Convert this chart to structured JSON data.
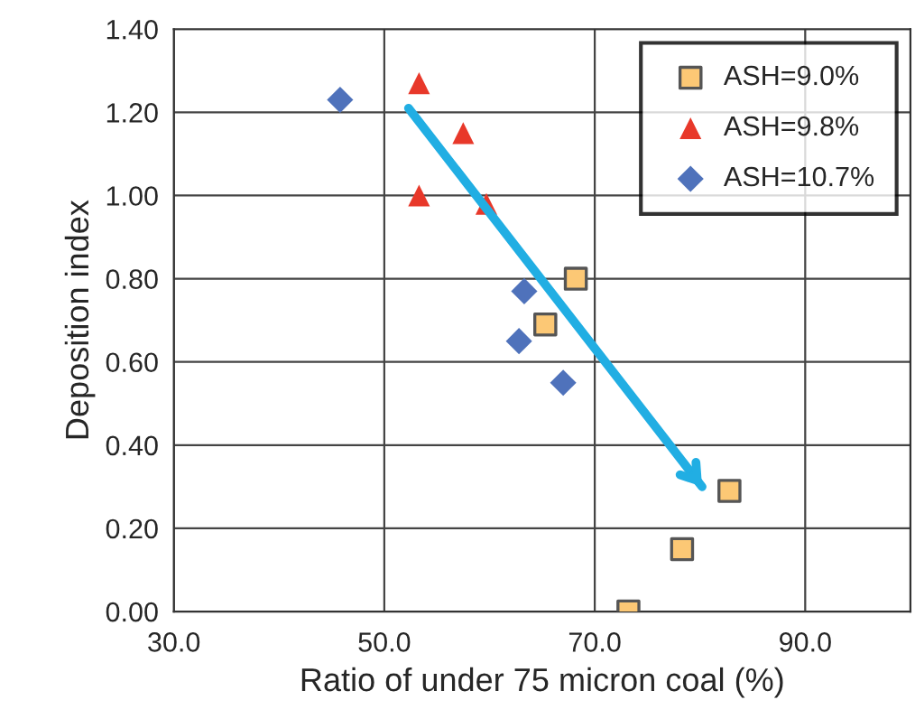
{
  "chart_data": {
    "type": "scatter",
    "xlabel": "Ratio of under 75 micron coal (%)",
    "ylabel": "Deposition index",
    "series": [
      {
        "name": "ASH=9.0%",
        "color": "#fcc875",
        "marker": "square",
        "x": [
          68.2,
          65.3,
          82.8,
          78.3,
          73.2
        ],
        "values": [
          0.8,
          0.69,
          0.29,
          0.15,
          0.0
        ]
      },
      {
        "name": "ASH=9.8%",
        "color": "#e8382a",
        "marker": "triangle",
        "x": [
          53.3,
          57.5,
          53.3,
          59.7
        ],
        "values": [
          1.27,
          1.15,
          1.0,
          0.98
        ]
      },
      {
        "name": "ASH=10.7%",
        "color": "#4f72bb",
        "marker": "diamond",
        "x": [
          45.8,
          63.3,
          62.8,
          67.0
        ],
        "values": [
          1.23,
          0.77,
          0.65,
          0.55
        ]
      },
      {
        "type": "line",
        "color": "#21aee3",
        "marker": "none",
        "x": [
          52.3,
          80.2
        ],
        "values": [
          1.21,
          0.3
        ]
      }
    ],
    "xlim": [
      30,
      100
    ],
    "xticks": [
      {
        "value": 30,
        "label": "30.0"
      },
      {
        "value": 50,
        "label": "50.0"
      },
      {
        "value": 70,
        "label": "70.0"
      },
      {
        "value": 90,
        "label": "90.0"
      }
    ],
    "ylim": [
      0,
      1.4
    ],
    "yticks": [
      {
        "value": 0,
        "label": "0.00"
      },
      {
        "value": 0.2,
        "label": "0.20"
      },
      {
        "value": 0.4,
        "label": "0.40"
      },
      {
        "value": 0.6,
        "label": "0.60"
      },
      {
        "value": 0.8,
        "label": "0.80"
      },
      {
        "value": 1.0,
        "label": "1.00"
      },
      {
        "value": 1.2,
        "label": "1.20"
      },
      {
        "value": 1.4,
        "label": "1.40"
      }
    ],
    "grid": true,
    "legend": "top right"
  }
}
